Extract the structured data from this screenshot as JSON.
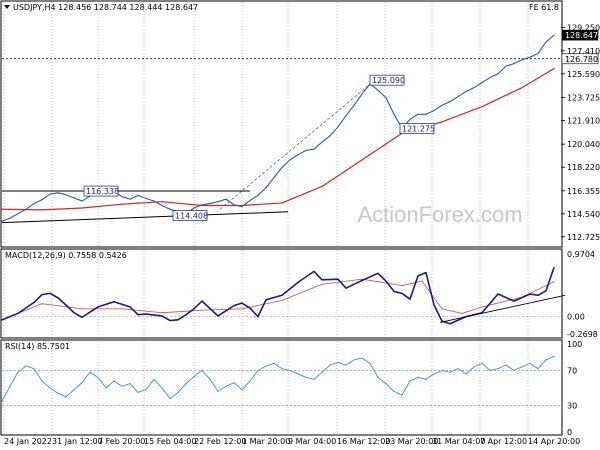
{
  "header": {
    "symbol_line": "USDJPY,H4  128.456 128.744 128.444 128.647",
    "fe_label": "FE 61.8"
  },
  "watermark": "ActionForex.com",
  "price_axis": {
    "ticks": [
      "129.250",
      "127.410",
      "125.590",
      "123.725",
      "121.910",
      "120.040",
      "118.220",
      "116.355",
      "114.540",
      "112.725"
    ],
    "current_tag": "128.647",
    "level_tag": "126.780"
  },
  "annotations": {
    "high_1": "116.338",
    "low_1": "114.408",
    "high_2": "125.090",
    "low_2": "121.275"
  },
  "macd_panel": {
    "title": "MACD(12,26,9) 0.7558 0.5426",
    "ticks": [
      "0.9704",
      "0.00",
      "-0.2698"
    ]
  },
  "rsi_panel": {
    "title": "RSI(14) 85.7501",
    "ticks": [
      "100",
      "70",
      "30",
      "0"
    ]
  },
  "time_axis": [
    "24 Jan 2022",
    "31 Jan 12:00",
    "7 Feb 20:00",
    "15 Feb 04:00",
    "22 Feb 12:00",
    "1 Mar 20:00",
    "9 Mar 04:00",
    "16 Mar 12:00",
    "23 Mar 20:00",
    "31 Mar 04:00",
    "7 Apr 12:00",
    "14 Apr 20:00"
  ],
  "colors": {
    "price": "#2a5ca8",
    "sma": "#e02020",
    "macd": "#1a1a8c",
    "signal": "#c06060",
    "rsi": "#3a90dd",
    "grid": "#808080"
  },
  "chart_data": [
    {
      "type": "line",
      "title": "USDJPY,H4",
      "series": [
        {
          "name": "USDJPY",
          "x": [
            0,
            8,
            16,
            24,
            32,
            40,
            48,
            56,
            64,
            72,
            80,
            88,
            96,
            104,
            112,
            120,
            128,
            136,
            144,
            152,
            160,
            168,
            176,
            184,
            192,
            200,
            208,
            216,
            224,
            232,
            240,
            248,
            256,
            264,
            272,
            280,
            288,
            296,
            304,
            312,
            320,
            328,
            336,
            344,
            352,
            360,
            368,
            376,
            384,
            392,
            400,
            408,
            416,
            424,
            432,
            440,
            448,
            456,
            464,
            472,
            480,
            488,
            496,
            504,
            512,
            520,
            528,
            536,
            544,
            552
          ],
          "y": [
            113.95,
            114.2,
            114.55,
            114.9,
            115.35,
            115.65,
            116.1,
            116.2,
            116.05,
            115.8,
            115.55,
            115.95,
            116.15,
            116.05,
            116.3,
            115.9,
            115.7,
            116.0,
            115.75,
            115.55,
            115.2,
            114.9,
            114.7,
            114.55,
            115.0,
            115.25,
            115.35,
            115.5,
            115.7,
            115.25,
            115.1,
            115.6,
            116.0,
            116.6,
            117.4,
            118.2,
            118.8,
            119.2,
            119.55,
            119.65,
            120.2,
            120.7,
            121.4,
            122.3,
            123.1,
            124.0,
            124.8,
            124.3,
            123.7,
            122.4,
            121.3,
            122.0,
            122.4,
            122.4,
            122.7,
            123.1,
            123.4,
            123.8,
            124.2,
            124.5,
            124.9,
            125.3,
            125.6,
            126.2,
            126.4,
            126.7,
            126.9,
            127.2,
            128.1,
            128.65
          ]
        },
        {
          "name": "SMA",
          "x": [
            0,
            40,
            80,
            120,
            160,
            200,
            240,
            280,
            320,
            360,
            400,
            440,
            480,
            520,
            552
          ],
          "y": [
            114.9,
            114.85,
            115.0,
            115.3,
            115.5,
            115.2,
            115.2,
            115.4,
            116.7,
            118.8,
            120.9,
            121.8,
            123.0,
            124.5,
            126.0
          ]
        }
      ],
      "ylim": [
        112.0,
        130.0
      ]
    },
    {
      "type": "line",
      "title": "MACD(12,26,9)",
      "series": [
        {
          "name": "MACD",
          "x": [
            0,
            16,
            32,
            40,
            48,
            56,
            64,
            72,
            80,
            96,
            112,
            128,
            136,
            144,
            160,
            168,
            176,
            184,
            192,
            200,
            216,
            232,
            240,
            248,
            256,
            264,
            280,
            296,
            312,
            320,
            336,
            344,
            360,
            376,
            384,
            392,
            400,
            408,
            416,
            424,
            432,
            440,
            448,
            464,
            480,
            496,
            512,
            528,
            536,
            544,
            552
          ],
          "y": [
            -0.05,
            0.05,
            0.22,
            0.34,
            0.36,
            0.29,
            0.18,
            0.06,
            -0.01,
            0.15,
            0.23,
            0.15,
            0.03,
            0.04,
            0.01,
            -0.06,
            -0.05,
            0.03,
            0.12,
            0.24,
            0.01,
            0.17,
            0.21,
            0.13,
            0.0,
            0.26,
            0.33,
            0.53,
            0.7,
            0.57,
            0.58,
            0.44,
            0.56,
            0.67,
            0.55,
            0.39,
            0.36,
            0.27,
            0.63,
            0.68,
            0.18,
            -0.07,
            -0.11,
            -0.0,
            0.06,
            0.35,
            0.24,
            0.35,
            0.33,
            0.4,
            0.76
          ]
        },
        {
          "name": "Signal",
          "x": [
            0,
            40,
            80,
            120,
            160,
            200,
            240,
            280,
            320,
            360,
            400,
            420,
            440,
            460,
            480,
            520,
            552
          ],
          "y": [
            -0.05,
            0.2,
            0.12,
            0.12,
            0.06,
            0.1,
            0.12,
            0.25,
            0.5,
            0.58,
            0.48,
            0.55,
            0.12,
            0.05,
            0.15,
            0.3,
            0.54
          ]
        }
      ],
      "ylim": [
        -0.3,
        1.0
      ]
    },
    {
      "type": "line",
      "title": "RSI(14)",
      "series": [
        {
          "name": "RSI",
          "x": [
            0,
            8,
            16,
            24,
            32,
            40,
            48,
            56,
            64,
            72,
            80,
            88,
            96,
            104,
            112,
            120,
            128,
            136,
            144,
            152,
            160,
            168,
            176,
            184,
            192,
            200,
            208,
            216,
            224,
            232,
            240,
            248,
            256,
            264,
            272,
            280,
            288,
            296,
            304,
            312,
            320,
            328,
            336,
            344,
            352,
            360,
            368,
            376,
            384,
            392,
            400,
            408,
            416,
            424,
            432,
            440,
            448,
            456,
            464,
            472,
            480,
            488,
            496,
            504,
            512,
            520,
            528,
            536,
            544,
            552
          ],
          "y": [
            35,
            52,
            68,
            75,
            72,
            58,
            50,
            44,
            40,
            48,
            56,
            68,
            62,
            50,
            58,
            52,
            55,
            45,
            48,
            60,
            50,
            38,
            45,
            55,
            63,
            70,
            60,
            46,
            52,
            56,
            48,
            58,
            70,
            75,
            78,
            72,
            70,
            66,
            62,
            60,
            68,
            76,
            79,
            76,
            82,
            84,
            78,
            62,
            55,
            46,
            42,
            58,
            62,
            60,
            66,
            70,
            68,
            72,
            66,
            74,
            78,
            70,
            72,
            76,
            70,
            74,
            78,
            72,
            82,
            86
          ]
        }
      ],
      "ylim": [
        0,
        100
      ]
    }
  ]
}
